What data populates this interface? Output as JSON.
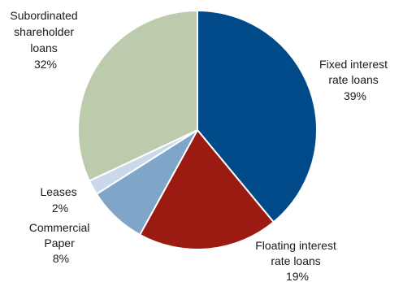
{
  "chart_data": {
    "type": "pie",
    "slices": [
      {
        "label_lines": [
          "Fixed interest",
          "rate loans"
        ],
        "value_text": "39%",
        "value": 39,
        "color": "#004a8a"
      },
      {
        "label_lines": [
          "Floating interest",
          "rate loans"
        ],
        "value_text": "19%",
        "value": 19,
        "color": "#9b1b12"
      },
      {
        "label_lines": [
          "Commercial",
          "Paper"
        ],
        "value_text": "8%",
        "value": 8,
        "color": "#7fa6c8"
      },
      {
        "label_lines": [
          "Leases"
        ],
        "value_text": "2%",
        "value": 2,
        "color": "#c9d9ea"
      },
      {
        "label_lines": [
          "Subordinated",
          "shareholder",
          "loans"
        ],
        "value_text": "32%",
        "value": 32,
        "color": "#bccbab"
      }
    ]
  }
}
